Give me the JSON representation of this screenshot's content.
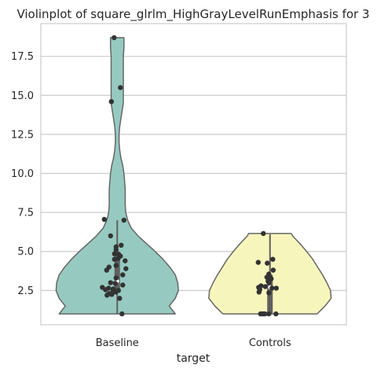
{
  "chart_data": {
    "type": "violin",
    "title": "Violinplot of square_glrlm_HighGrayLevelRunEmphasis for 3",
    "xlabel": "target",
    "ylabel": "",
    "categories": [
      "Baseline",
      "Controls"
    ],
    "ylim": [
      0.3,
      19.6
    ],
    "yticks": [
      "2.5",
      "5.0",
      "7.5",
      "10.0",
      "12.5",
      "15.0",
      "17.5"
    ],
    "grid": "y",
    "colors": {
      "Baseline": "#96cac1",
      "Controls": "#f6f6bc",
      "outline": "#666666",
      "points": "#333333"
    },
    "violins": [
      {
        "name": "Baseline",
        "profile": [
          [
            1.0,
            0.95
          ],
          [
            1.5,
            0.85
          ],
          [
            2.0,
            0.95
          ],
          [
            2.5,
            1.0
          ],
          [
            3.0,
            0.99
          ],
          [
            3.5,
            0.95
          ],
          [
            4.0,
            0.86
          ],
          [
            4.5,
            0.75
          ],
          [
            5.0,
            0.62
          ],
          [
            5.5,
            0.48
          ],
          [
            6.0,
            0.34
          ],
          [
            6.5,
            0.23
          ],
          [
            7.0,
            0.17
          ],
          [
            7.5,
            0.14
          ],
          [
            8.0,
            0.13
          ],
          [
            8.5,
            0.13
          ],
          [
            9.0,
            0.13
          ],
          [
            9.5,
            0.12
          ],
          [
            10.0,
            0.11
          ],
          [
            10.5,
            0.09
          ],
          [
            11.0,
            0.06
          ],
          [
            11.5,
            0.04
          ],
          [
            12.0,
            0.03
          ],
          [
            12.5,
            0.03
          ],
          [
            13.0,
            0.04
          ],
          [
            13.5,
            0.06
          ],
          [
            14.0,
            0.08
          ],
          [
            14.5,
            0.1
          ],
          [
            15.0,
            0.1
          ],
          [
            15.5,
            0.1
          ],
          [
            16.0,
            0.1
          ],
          [
            16.5,
            0.1
          ],
          [
            17.0,
            0.1
          ],
          [
            17.5,
            0.1
          ],
          [
            18.0,
            0.11
          ],
          [
            18.5,
            0.11
          ],
          [
            18.7,
            0.11
          ]
        ],
        "box": {
          "whisker_low": 1.0,
          "q1": 2.4,
          "median": 3.1,
          "q3": 5.0,
          "whisker_high": 7.0
        },
        "points": [
          [
            0.42,
            18.7
          ],
          [
            0.58,
            15.5
          ],
          [
            0.35,
            14.6
          ],
          [
            0.17,
            7.05
          ],
          [
            0.67,
            7.0
          ],
          [
            0.33,
            6.0
          ],
          [
            0.6,
            5.4
          ],
          [
            0.47,
            5.3
          ],
          [
            0.47,
            5.1
          ],
          [
            0.43,
            4.85
          ],
          [
            0.54,
            4.8
          ],
          [
            0.58,
            4.7
          ],
          [
            0.52,
            4.55
          ],
          [
            0.43,
            4.5
          ],
          [
            0.7,
            4.4
          ],
          [
            0.47,
            4.1
          ],
          [
            0.29,
            4.0
          ],
          [
            0.23,
            3.8
          ],
          [
            0.72,
            3.9
          ],
          [
            0.64,
            3.5
          ],
          [
            0.47,
            3.3
          ],
          [
            0.33,
            3.0
          ],
          [
            0.45,
            2.95
          ],
          [
            0.64,
            2.85
          ],
          [
            0.12,
            2.7
          ],
          [
            0.28,
            2.65
          ],
          [
            0.4,
            2.6
          ],
          [
            0.2,
            2.55
          ],
          [
            0.39,
            2.45
          ],
          [
            0.46,
            2.4
          ],
          [
            0.53,
            2.5
          ],
          [
            0.29,
            2.3
          ],
          [
            0.36,
            2.25
          ],
          [
            0.24,
            2.2
          ],
          [
            0.56,
            2.0
          ],
          [
            0.62,
            1.0
          ]
        ]
      },
      {
        "name": "Controls",
        "profile": [
          [
            1.0,
            0.77
          ],
          [
            1.5,
            0.9
          ],
          [
            2.0,
            1.0
          ],
          [
            2.5,
            0.99
          ],
          [
            3.0,
            0.93
          ],
          [
            3.5,
            0.86
          ],
          [
            4.0,
            0.78
          ],
          [
            4.5,
            0.7
          ],
          [
            5.0,
            0.6
          ],
          [
            5.5,
            0.49
          ],
          [
            6.0,
            0.37
          ],
          [
            6.15,
            0.35
          ]
        ],
        "box": {
          "whisker_low": 1.0,
          "q1": 1.0,
          "median": 2.7,
          "q3": 3.5,
          "whisker_high": 6.1
        },
        "points": [
          [
            0.33,
            6.15
          ],
          [
            0.57,
            4.5
          ],
          [
            0.2,
            4.3
          ],
          [
            0.43,
            4.25
          ],
          [
            0.58,
            3.8
          ],
          [
            0.47,
            3.55
          ],
          [
            0.49,
            3.4
          ],
          [
            0.42,
            3.35
          ],
          [
            0.53,
            3.25
          ],
          [
            0.45,
            3.1
          ],
          [
            0.47,
            3.0
          ],
          [
            0.27,
            2.8
          ],
          [
            0.38,
            2.75
          ],
          [
            0.21,
            2.7
          ],
          [
            0.66,
            2.65
          ],
          [
            0.55,
            2.65
          ],
          [
            0.24,
            2.55
          ],
          [
            0.22,
            2.4
          ],
          [
            0.47,
            2.35
          ],
          [
            0.33,
            1.0
          ],
          [
            0.26,
            1.0
          ],
          [
            0.29,
            1.0
          ],
          [
            0.37,
            1.0
          ],
          [
            0.47,
            1.0
          ],
          [
            0.65,
            1.0
          ]
        ]
      }
    ]
  }
}
